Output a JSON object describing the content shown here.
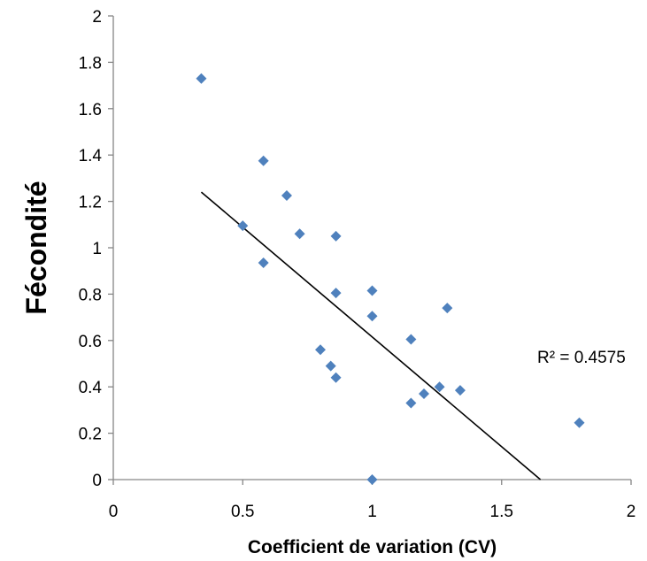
{
  "chart_data": {
    "type": "scatter",
    "xlabel": "Coefficient de variation (CV)",
    "ylabel": "Fécondité",
    "xlim": [
      0,
      2
    ],
    "ylim": [
      0,
      2
    ],
    "x_ticks": [
      "0",
      "0.5",
      "1",
      "1.5",
      "2"
    ],
    "y_ticks": [
      "0",
      "0.2",
      "0.4",
      "0.6",
      "0.8",
      "1",
      "1.2",
      "1.4",
      "1.6",
      "1.8",
      "2"
    ],
    "grid": false,
    "legend": "none",
    "marker_color": "#4F81BD",
    "points": [
      {
        "x": 0.34,
        "y": 1.73
      },
      {
        "x": 0.58,
        "y": 1.375
      },
      {
        "x": 0.67,
        "y": 1.225
      },
      {
        "x": 0.5,
        "y": 1.095
      },
      {
        "x": 0.72,
        "y": 1.06
      },
      {
        "x": 0.86,
        "y": 1.05
      },
      {
        "x": 0.58,
        "y": 0.935
      },
      {
        "x": 1.0,
        "y": 0.815
      },
      {
        "x": 0.86,
        "y": 0.805
      },
      {
        "x": 1.29,
        "y": 0.74
      },
      {
        "x": 1.0,
        "y": 0.705
      },
      {
        "x": 1.15,
        "y": 0.605
      },
      {
        "x": 0.8,
        "y": 0.56
      },
      {
        "x": 0.84,
        "y": 0.49
      },
      {
        "x": 0.86,
        "y": 0.44
      },
      {
        "x": 1.26,
        "y": 0.4
      },
      {
        "x": 1.34,
        "y": 0.385
      },
      {
        "x": 1.2,
        "y": 0.37
      },
      {
        "x": 1.15,
        "y": 0.33
      },
      {
        "x": 1.8,
        "y": 0.245
      },
      {
        "x": 1.0,
        "y": 0.0
      }
    ],
    "trendline": {
      "type": "linear",
      "x": [
        0.34,
        1.65
      ],
      "y": [
        1.24,
        0.0
      ],
      "color": "#000000",
      "r_squared_label": "R² = 0.4575"
    }
  }
}
